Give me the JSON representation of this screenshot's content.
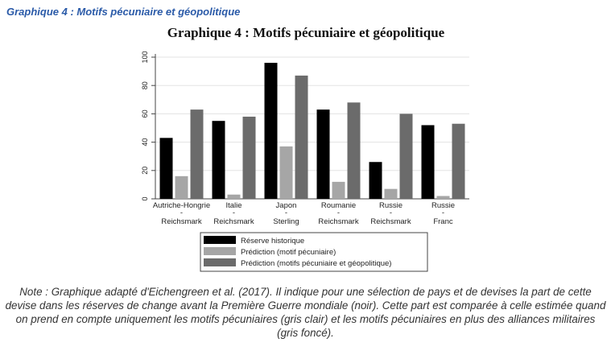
{
  "caption": "Graphique 4 : Motifs pécuniaire et géopolitique",
  "note": "Note : Graphique adapté d'Eichengreen et al. (2017). Il indique pour une sélection de pays et de devises la part de cette devise dans les réserves de change avant la Première Guerre mondiale (noir). Cette part est comparée à celle estimée quand on prend en compte uniquement les motifs pécuniaires (gris clair) et les motifs pécuniaires en plus des alliances militaires (gris foncé).",
  "chart_data": {
    "type": "bar",
    "title": "Graphique 4 : Motifs pécuniaire et géopolitique",
    "xlabel": "",
    "ylabel": "",
    "ylim": [
      0,
      100
    ],
    "yticks": [
      0,
      20,
      40,
      60,
      80,
      100
    ],
    "grid": true,
    "legend_position": "bottom",
    "categories": [
      [
        "Autriche-Hongrie",
        "-",
        "Reichsmark"
      ],
      [
        "Italie",
        "-",
        "Reichsmark"
      ],
      [
        "Japon",
        "-",
        "Sterling"
      ],
      [
        "Roumanie",
        "-",
        "Reichsmark"
      ],
      [
        "Russie",
        "-",
        "Reichsmark"
      ],
      [
        "Russie",
        "-",
        "Franc"
      ]
    ],
    "series": [
      {
        "name": "Réserve historique",
        "color": "#000000",
        "values": [
          43,
          55,
          96,
          63,
          26,
          52
        ]
      },
      {
        "name": "Prédiction (motif pécuniaire)",
        "color": "#a6a6a6",
        "values": [
          16,
          3,
          37,
          12,
          7,
          2
        ]
      },
      {
        "name": "Prédiction (motifs pécuniaire et géopolitique)",
        "color": "#6b6b6b",
        "values": [
          63,
          58,
          87,
          68,
          60,
          53
        ]
      }
    ]
  }
}
